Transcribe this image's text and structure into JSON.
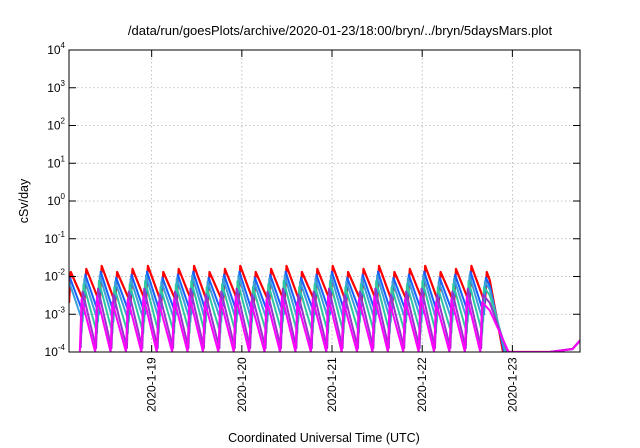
{
  "chart_data": {
    "type": "line",
    "title": "/data/run/goesPlots/archive/2020-01-23/18:00/bryn/../bryn/5daysMars.plot",
    "xlabel": "Coordinated Universal Time (UTC)",
    "ylabel": "cSv/day",
    "xlim": [
      "2020-01-18 02:00",
      "2020-01-23 18:00"
    ],
    "ylim": [
      0.0001,
      10000
    ],
    "yscale": "log",
    "grid": true,
    "legend": "none",
    "x_tick_labels": [
      "2020-1-19",
      "2020-1-20",
      "2020-1-21",
      "2020-1-22",
      "2020-1-23"
    ],
    "x_tick_dates": [
      "2020-01-19",
      "2020-01-20",
      "2020-01-21",
      "2020-01-22",
      "2020-01-23"
    ],
    "y_ticks": [
      {
        "base": "10",
        "exp": "-4",
        "value": 0.0001
      },
      {
        "base": "10",
        "exp": "-3",
        "value": 0.001
      },
      {
        "base": "10",
        "exp": "-2",
        "value": 0.01
      },
      {
        "base": "10",
        "exp": "-1",
        "value": 0.1
      },
      {
        "base": "10",
        "exp": "0",
        "value": 1
      },
      {
        "base": "10",
        "exp": "1",
        "value": 10
      },
      {
        "base": "10",
        "exp": "2",
        "value": 100
      },
      {
        "base": "10",
        "exp": "3",
        "value": 1000
      },
      {
        "base": "10",
        "exp": "4",
        "value": 10000
      }
    ],
    "series": [
      {
        "color": "#ff0000",
        "peak_exp": -1.8,
        "trough_exp": -2.7
      },
      {
        "color": "#1560ff",
        "peak_exp": -1.95,
        "trough_exp": -3.0
      },
      {
        "color": "#3aa0d8",
        "peak_exp": -2.05,
        "trough_exp": -3.2
      },
      {
        "color": "#2ec7a0",
        "peak_exp": -2.2,
        "trough_exp": -3.5
      },
      {
        "color": "#9933cc",
        "peak_exp": -2.4,
        "trough_exp": -3.9
      },
      {
        "color": "#ff00ff",
        "peak_exp": -2.6,
        "trough_exp": -4.4
      }
    ],
    "oscillation_period_hours": 4.1,
    "falloff_time": "2020-01-22 18:00",
    "tail_values_after_falloff": [
      [
        "2020-01-23 02:00",
        0.0001
      ],
      [
        "2020-01-23 10:00",
        0.0001
      ],
      [
        "2020-01-23 16:00",
        0.00012
      ],
      [
        "2020-01-23 18:00",
        0.0002
      ]
    ]
  }
}
